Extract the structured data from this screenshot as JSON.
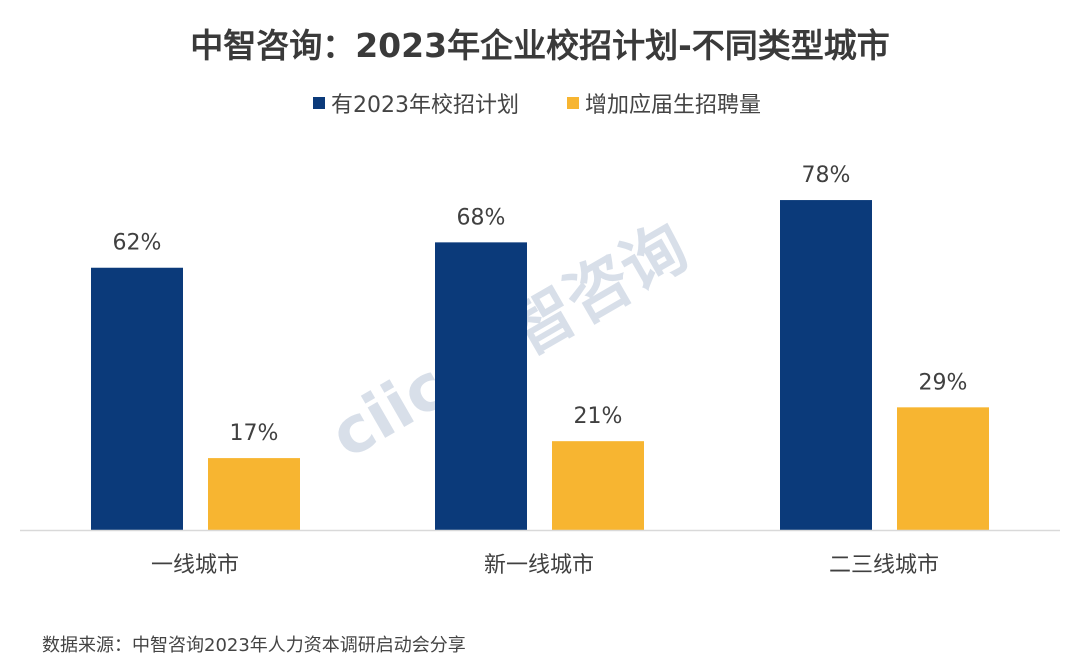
{
  "chart_data": {
    "type": "bar",
    "title": "中智咨询：2023年企业校招计划-不同类型城市",
    "categories": [
      "一线城市",
      "新一线城市",
      "二三线城市"
    ],
    "series": [
      {
        "name": "有2023年校招计划",
        "values": [
          62,
          68,
          78
        ],
        "labels": [
          "62%",
          "68%",
          "78%"
        ],
        "color": "#0b3a7a"
      },
      {
        "name": "增加应届生招聘量",
        "values": [
          17,
          21,
          29
        ],
        "labels": [
          "17%",
          "21%",
          "29%"
        ],
        "color": "#f7b531"
      }
    ],
    "unit": "%",
    "ylim": [
      0,
      100
    ],
    "grid": false,
    "legend_position": "top",
    "source": "数据来源：中智咨询2023年人力资本调研启动会分享",
    "watermark": "ciic 中智咨询"
  }
}
